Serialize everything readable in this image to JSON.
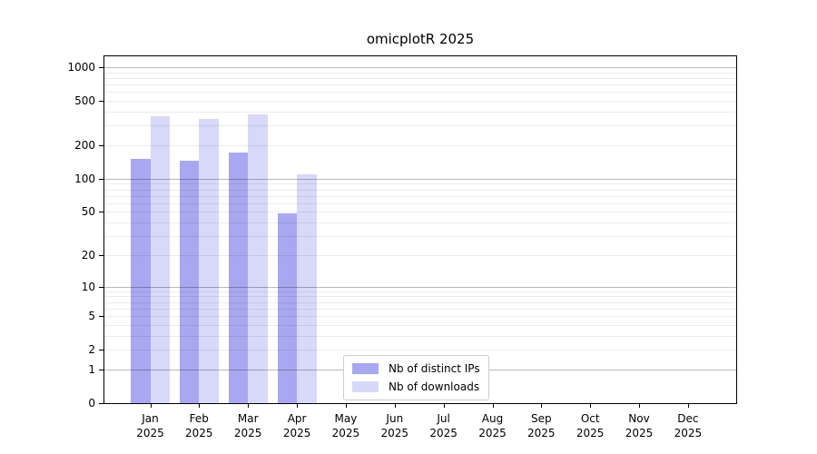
{
  "title": "omicplotR 2025",
  "chart_data": {
    "type": "bar",
    "title": "omicplotR 2025",
    "y_scale": "log1p",
    "ylim": [
      0,
      1276
    ],
    "y_ticks": [
      0,
      1,
      2,
      5,
      10,
      20,
      50,
      100,
      200,
      500,
      1000
    ],
    "grid": {
      "orientation": "horizontal",
      "major_values": [
        1,
        10,
        100,
        1000
      ],
      "minor_values": [
        2,
        3,
        4,
        5,
        6,
        7,
        8,
        9,
        20,
        30,
        40,
        50,
        60,
        70,
        80,
        90,
        200,
        300,
        400,
        500,
        600,
        700,
        800,
        900
      ]
    },
    "x_categories": [
      "Jan",
      "Feb",
      "Mar",
      "Apr",
      "May",
      "Jun",
      "Jul",
      "Aug",
      "Sep",
      "Oct",
      "Nov",
      "Dec"
    ],
    "x_year": "2025",
    "series": [
      {
        "name": "Nb of distinct IPs",
        "color": "#a8a8f0",
        "values": [
          152,
          145,
          172,
          49,
          null,
          null,
          null,
          null,
          null,
          null,
          null,
          null
        ]
      },
      {
        "name": "Nb of downloads",
        "color": "#d8d8f8",
        "values": [
          365,
          345,
          380,
          110,
          null,
          null,
          null,
          null,
          null,
          null,
          null,
          null
        ]
      }
    ],
    "legend_position": "inside-bottom-center"
  },
  "colors": {
    "background": "#ffffff",
    "axis": "#000000",
    "grid_major": "#b8b8b8",
    "grid_minor": "#ebebeb"
  }
}
